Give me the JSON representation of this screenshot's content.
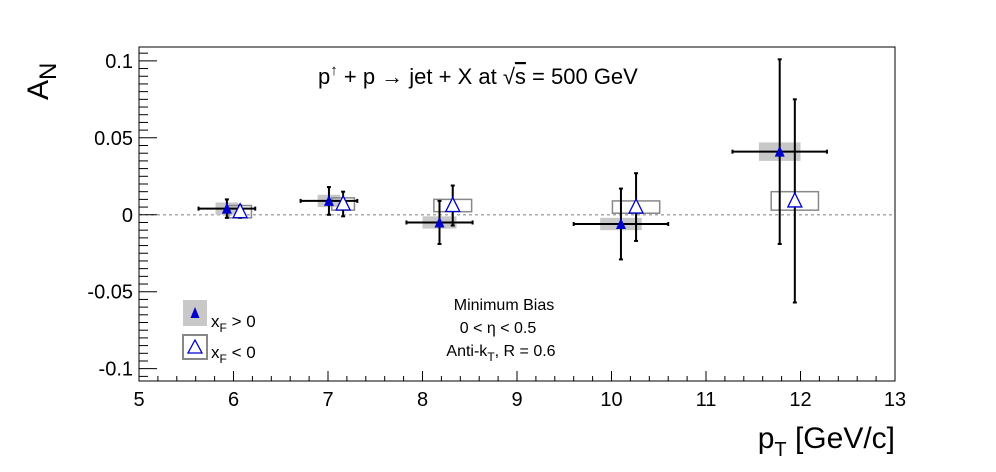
{
  "chart_data": {
    "type": "scatter",
    "title": {
      "p": "p",
      "up_arrow": "↑",
      "rest": " + p → jet + X at ",
      "sqrt": "√",
      "s": "s",
      "energy": " = 500 GeV"
    },
    "ylabel": {
      "main": "A",
      "sub": "N"
    },
    "xlabel": {
      "main": "p",
      "sub": "T",
      "unit": " [GeV/c]"
    },
    "xlim": [
      5,
      13
    ],
    "ylim": [
      -0.108,
      0.109
    ],
    "xticks": [
      5,
      6,
      7,
      8,
      9,
      10,
      11,
      12,
      13
    ],
    "yticks": [
      -0.1,
      -0.05,
      0,
      0.05,
      0.1
    ],
    "ytick_labels": [
      "-0.1",
      "-0.05",
      "0",
      "0.05",
      "0.1"
    ],
    "zero_line": true,
    "legend": {
      "position": "bottom-left",
      "entries": [
        {
          "main": "x",
          "sub": "F",
          "cond": " > 0",
          "series": "xF_pos"
        },
        {
          "main": "x",
          "sub": "F",
          "cond": " < 0",
          "series": "xF_neg"
        }
      ]
    },
    "annotations": {
      "line1": "Minimum Bias",
      "line2_prefix": "0 < ",
      "line2_eta": "η",
      "line2_suffix": " < 0.5",
      "line3_prefix": "Anti-k",
      "line3_sub": "T",
      "line3_suffix": ", R = 0.6"
    },
    "series": [
      {
        "key": "xF_pos",
        "marker": "filled-triangle",
        "color": "#0000cc",
        "syst_color": "#c8c8c8",
        "points": [
          {
            "x": 5.93,
            "y": 0.004,
            "xerr": 0.3,
            "yerr": 0.006,
            "syst_w": 0.12,
            "syst_h": 0.004
          },
          {
            "x": 7.01,
            "y": 0.009,
            "xerr": 0.3,
            "yerr": 0.009,
            "syst_w": 0.12,
            "syst_h": 0.004
          },
          {
            "x": 8.18,
            "y": -0.005,
            "xerr": 0.35,
            "yerr": 0.014,
            "syst_w": 0.18,
            "syst_h": 0.004
          },
          {
            "x": 10.1,
            "y": -0.006,
            "xerr": 0.5,
            "yerr": 0.023,
            "syst_w": 0.22,
            "syst_h": 0.004
          },
          {
            "x": 11.78,
            "y": 0.041,
            "xerr": 0.5,
            "yerr": 0.06,
            "syst_w": 0.22,
            "syst_h": 0.006
          }
        ]
      },
      {
        "key": "xF_neg",
        "marker": "open-triangle",
        "color": "#0000cc",
        "syst_color": "#888888",
        "points": [
          {
            "x": 6.07,
            "y": 0.002,
            "xerr": 0,
            "yerr": 0.004,
            "syst_w": 0.12,
            "syst_h": 0.004
          },
          {
            "x": 7.16,
            "y": 0.007,
            "xerr": 0,
            "yerr": 0.008,
            "syst_w": 0.12,
            "syst_h": 0.004
          },
          {
            "x": 8.32,
            "y": 0.006,
            "xerr": 0,
            "yerr": 0.013,
            "syst_w": 0.2,
            "syst_h": 0.004
          },
          {
            "x": 10.26,
            "y": 0.005,
            "xerr": 0,
            "yerr": 0.022,
            "syst_w": 0.25,
            "syst_h": 0.004
          },
          {
            "x": 11.94,
            "y": 0.009,
            "xerr": 0,
            "yerr": 0.066,
            "syst_w": 0.25,
            "syst_h": 0.006
          }
        ]
      }
    ]
  }
}
